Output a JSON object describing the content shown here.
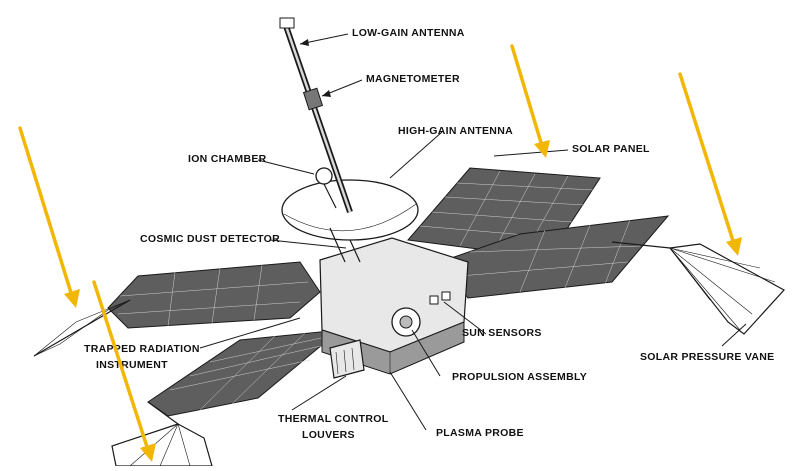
{
  "figure": {
    "callout_color": "#f2b705",
    "line_color": "#1a1a1a",
    "panel_color": "#5e5e5e"
  },
  "labels": {
    "low_gain_antenna": "LOW-GAIN ANTENNA",
    "magnetometer": "MAGNETOMETER",
    "high_gain_antenna": "HIGH-GAIN ANTENNA",
    "ion_chamber": "ION CHAMBER",
    "solar_panel": "SOLAR PANEL",
    "cosmic_dust_detector": "COSMIC DUST DETECTOR",
    "trapped_radiation_line1": "TRAPPED RADIATION",
    "trapped_radiation_line2": "INSTRUMENT",
    "sun_sensors": "SUN SENSORS",
    "solar_pressure_vane": "SOLAR PRESSURE VANE",
    "propulsion_assembly": "PROPULSION ASSEMBLY",
    "thermal_control_line1": "THERMAL CONTROL",
    "thermal_control_line2": "LOUVERS",
    "plasma_probe": "PLASMA PROBE"
  }
}
